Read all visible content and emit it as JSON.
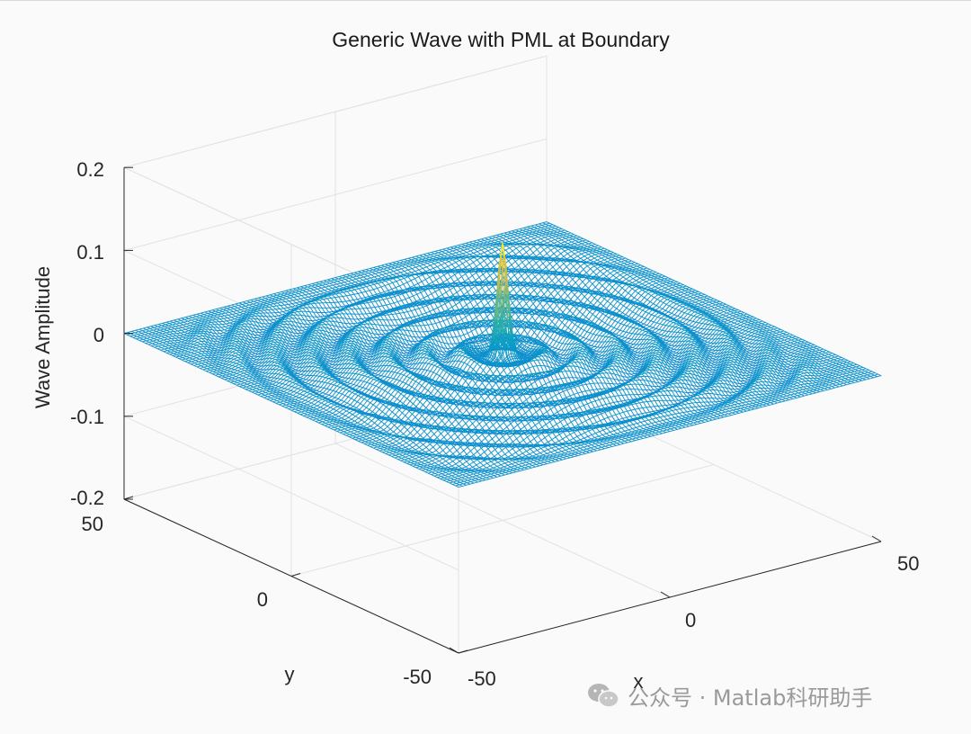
{
  "chart_data": {
    "type": "surface",
    "title": "Generic Wave with PML at Boundary",
    "xlabel": "x",
    "ylabel": "y",
    "zlabel": "Wave Amplitude",
    "xlim": [
      -50,
      50
    ],
    "ylim": [
      -50,
      50
    ],
    "zlim": [
      -0.2,
      0.2
    ],
    "xticks": [
      -50,
      0,
      50
    ],
    "yticks": [
      -50,
      0,
      50
    ],
    "zticks": [
      -0.2,
      -0.1,
      0,
      0.1,
      0.2
    ],
    "xtick_labels": [
      "-50",
      "0",
      "50"
    ],
    "ytick_labels": [
      "-50",
      "0",
      "50"
    ],
    "ztick_labels": [
      "-0.2",
      "-0.1",
      "0",
      "0.1",
      "0.2"
    ],
    "grid": true,
    "colormap": "parula",
    "style": "mesh",
    "surface": {
      "description": "circular ripples from a central source damped at the boundary",
      "center": [
        0,
        0
      ],
      "peak_amplitude": 0.135,
      "ring_wavelength": 7,
      "ring_amplitude": 0.012,
      "pml_boundary_damping": true
    }
  },
  "watermark": {
    "text": "公众号 · Matlab科研助手"
  },
  "colors": {
    "background": "#fafafa",
    "mesh_low": "#1f78ff",
    "mesh_high": "#f8e020"
  }
}
